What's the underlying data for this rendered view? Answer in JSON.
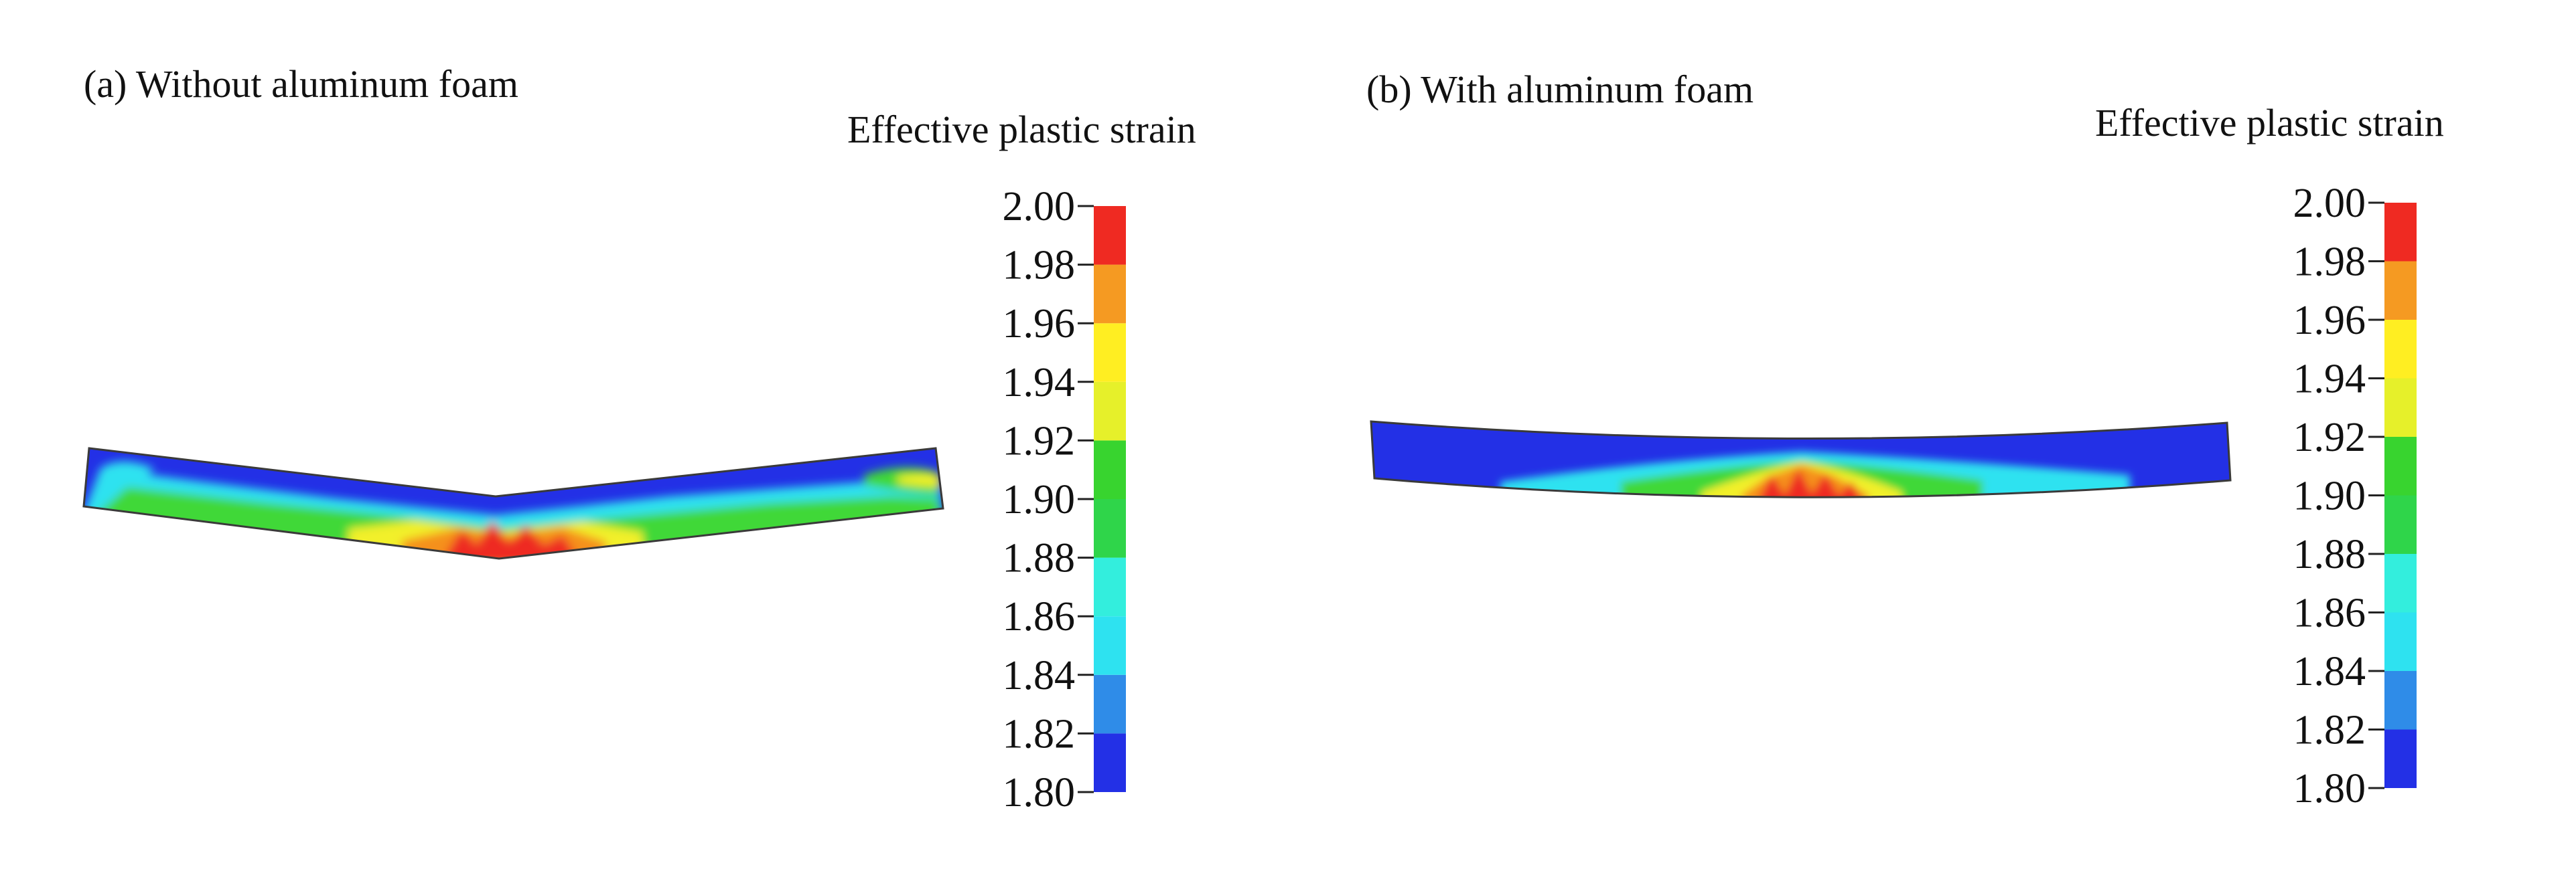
{
  "panels": [
    {
      "id": "a",
      "title": "(a) Without aluminum foam",
      "legend_title": "Effective plastic strain"
    },
    {
      "id": "b",
      "title": "(b) With aluminum foam",
      "legend_title": "Effective plastic strain"
    }
  ],
  "colorbar": {
    "min": 1.8,
    "max": 2.0,
    "tick_labels": [
      "2.00",
      "1.98",
      "1.96",
      "1.94",
      "1.92",
      "1.90",
      "1.88",
      "1.86",
      "1.84",
      "1.82",
      "1.80"
    ],
    "bands": [
      {
        "from": 1.8,
        "to": 1.82,
        "color": "#2330e6"
      },
      {
        "from": 1.82,
        "to": 1.84,
        "color": "#2f8ce8"
      },
      {
        "from": 1.84,
        "to": 1.86,
        "color": "#2ee2f0"
      },
      {
        "from": 1.86,
        "to": 1.88,
        "color": "#33eedd"
      },
      {
        "from": 1.88,
        "to": 1.9,
        "color": "#2fd54a"
      },
      {
        "from": 1.9,
        "to": 1.92,
        "color": "#38d42f"
      },
      {
        "from": 1.92,
        "to": 1.94,
        "color": "#e6f02a"
      },
      {
        "from": 1.94,
        "to": 1.96,
        "color": "#ffee22"
      },
      {
        "from": 1.96,
        "to": 1.98,
        "color": "#f59a22"
      },
      {
        "from": 1.98,
        "to": 2.0,
        "color": "#ef2a22"
      }
    ]
  },
  "colors": {
    "low": "#2330e6",
    "cyan": "#2ee2f0",
    "green": "#3fd838",
    "yellow": "#f2f02a",
    "orange": "#f5901e",
    "high": "#ee2a22"
  }
}
